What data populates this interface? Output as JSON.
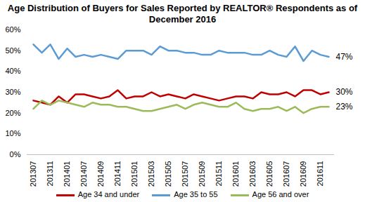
{
  "chart_data": {
    "type": "line",
    "title": "Age Distribution of Buyers for Sales Reported by REALTOR® Respondents as of December 2016",
    "categories": [
      "201307",
      null,
      "201311",
      null,
      "201401",
      null,
      "201407",
      null,
      "201409",
      null,
      "201411",
      null,
      "201501",
      null,
      "201503",
      null,
      "201505",
      null,
      "201507",
      null,
      "201509",
      null,
      "201511",
      null,
      "201601",
      null,
      "201603",
      null,
      "201605",
      null,
      "201607",
      null,
      "201609",
      null,
      "201611",
      null
    ],
    "series": [
      {
        "name": "Age 34 and under",
        "color": "#c00000",
        "values": [
          26,
          25,
          24,
          28,
          25,
          29,
          29,
          28,
          27,
          28,
          31,
          27,
          28,
          28,
          30,
          28,
          29,
          28,
          27,
          29,
          28,
          27,
          26,
          27,
          28,
          28,
          27,
          30,
          29,
          29,
          30,
          28,
          31,
          31,
          29,
          30
        ]
      },
      {
        "name": "Age 35 to 55",
        "color": "#5b9bd5",
        "values": [
          53,
          49,
          53,
          46,
          51,
          47,
          48,
          47,
          48,
          47,
          46,
          50,
          50,
          50,
          48,
          52,
          50,
          50,
          49,
          49,
          48,
          48,
          50,
          49,
          49,
          49,
          48,
          48,
          50,
          48,
          47,
          52,
          45,
          50,
          48,
          47
        ]
      },
      {
        "name": "Age 56 and over",
        "color": "#9bbb59",
        "values": [
          22,
          26,
          24,
          26,
          25,
          24,
          23,
          25,
          24,
          24,
          23,
          23,
          22,
          21,
          21,
          22,
          23,
          24,
          22,
          24,
          25,
          24,
          23,
          23,
          25,
          22,
          21,
          22,
          22,
          23,
          21,
          23,
          20,
          22,
          23,
          23
        ]
      }
    ],
    "annotations": [
      {
        "text": "47%",
        "value": 47
      },
      {
        "text": "30%",
        "value": 30
      },
      {
        "text": "23%",
        "value": 23
      }
    ],
    "ylim": [
      0,
      60
    ],
    "yticks": [
      {
        "value": 0,
        "label": "0%"
      },
      {
        "value": 10,
        "label": "10%"
      },
      {
        "value": 20,
        "label": "20%"
      },
      {
        "value": 30,
        "label": "30%"
      },
      {
        "value": 40,
        "label": "40%"
      },
      {
        "value": 50,
        "label": "50%"
      },
      {
        "value": 60,
        "label": "60%"
      }
    ],
    "grid": false,
    "legend": "bottom"
  }
}
